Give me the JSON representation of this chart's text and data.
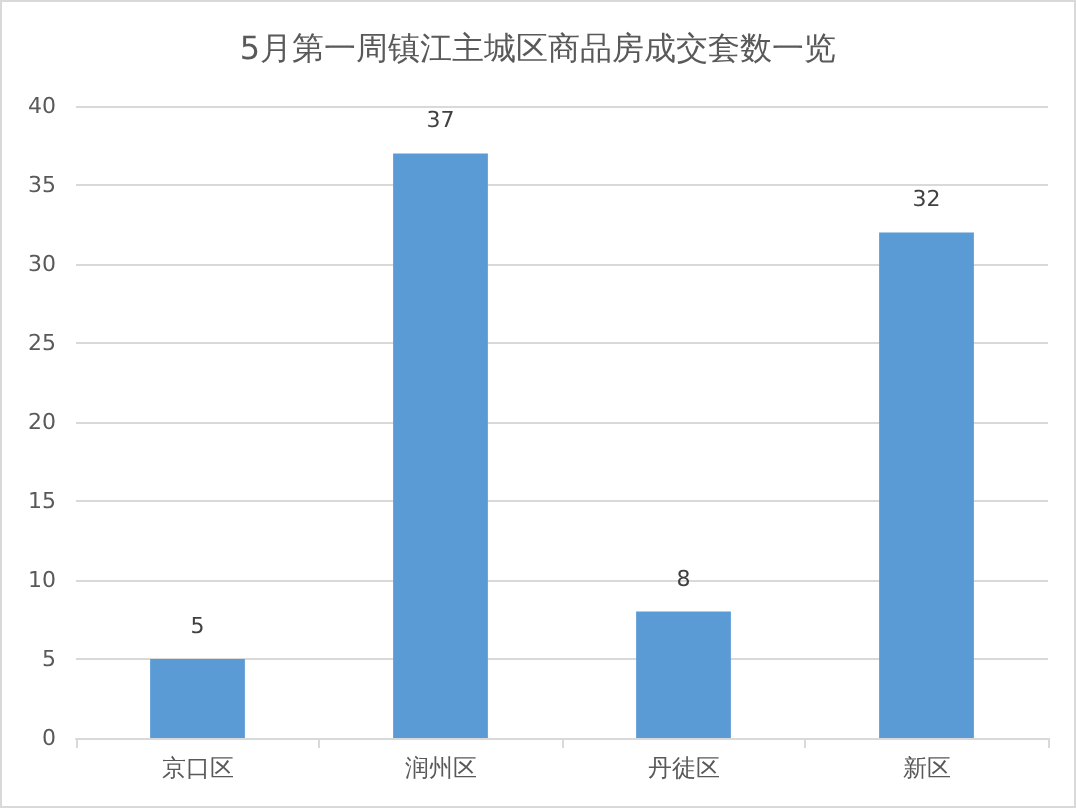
{
  "chart_data": {
    "type": "bar",
    "title": "5月第一周镇江主城区商品房成交套数一览",
    "categories": [
      "京口区",
      "润州区",
      "丹徒区",
      "新区"
    ],
    "values": [
      5,
      37,
      8,
      32
    ],
    "color": "#5b9bd5",
    "ylim": [
      0,
      40
    ],
    "yticks": [
      0,
      5,
      10,
      15,
      20,
      25,
      30,
      35,
      40
    ],
    "grid": "y",
    "data_labels": true
  }
}
